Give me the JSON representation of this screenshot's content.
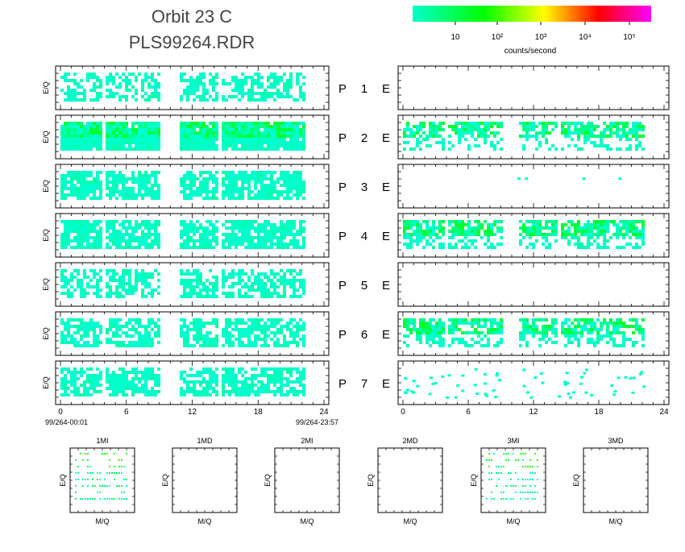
{
  "header": {
    "title_line1": "Orbit 23 C",
    "title_line2": "PLS99264.RDR"
  },
  "colorbar": {
    "colors": [
      "#00ffcc",
      "#00ff00",
      "#ffff00",
      "#ff0000",
      "#ff00ff"
    ],
    "ticks": [
      "10",
      "10²",
      "10³",
      "10⁴",
      "10⁵"
    ],
    "label": "counts/second"
  },
  "chart_data": {
    "type": "heatmap",
    "description_note_none": "",
    "ylabel": "E/Q",
    "x_ticks": [
      "0",
      "6",
      "12",
      "18",
      "24"
    ],
    "xlim": [
      0,
      24
    ],
    "time_start": "99/264-00:01",
    "time_end": "99/264-23:57",
    "data_gaps_hours": [
      [
        8.9,
        10.6
      ]
    ],
    "rows": [
      {
        "p_label": "P",
        "channel": "1",
        "e_label": "E",
        "p_coverage": 0.55,
        "p_green": false,
        "e_coverage": 0.0,
        "e_green": false
      },
      {
        "p_label": "P",
        "channel": "2",
        "e_label": "E",
        "p_coverage": 0.95,
        "p_green": true,
        "e_coverage": 0.7,
        "e_green": true
      },
      {
        "p_label": "P",
        "channel": "3",
        "e_label": "E",
        "p_coverage": 0.8,
        "p_green": false,
        "e_coverage": 0.02,
        "e_green": false
      },
      {
        "p_label": "P",
        "channel": "4",
        "e_label": "E",
        "p_coverage": 0.8,
        "p_green": false,
        "e_coverage": 0.8,
        "e_green": true
      },
      {
        "p_label": "P",
        "channel": "5",
        "e_label": "E",
        "p_coverage": 0.6,
        "p_green": false,
        "e_coverage": 0.0,
        "e_green": false
      },
      {
        "p_label": "P",
        "channel": "6",
        "e_label": "E",
        "p_coverage": 0.7,
        "p_green": false,
        "e_coverage": 0.75,
        "e_green": true
      },
      {
        "p_label": "P",
        "channel": "7",
        "e_label": "E",
        "p_coverage": 0.7,
        "p_green": false,
        "e_coverage": 0.15,
        "e_green": false
      }
    ],
    "mq_panels": [
      {
        "title": "1MI",
        "ylabel": "E/Q",
        "xlabel": "M/Q",
        "has_data": true
      },
      {
        "title": "1MD",
        "ylabel": "E/Q",
        "xlabel": "M/Q",
        "has_data": false
      },
      {
        "title": "2MI",
        "ylabel": "E/Q",
        "xlabel": "M/Q",
        "has_data": false
      },
      {
        "title": "2MD",
        "ylabel": "E/Q",
        "xlabel": "M/Q",
        "has_data": false
      },
      {
        "title": "3MI",
        "ylabel": "E/Q",
        "xlabel": "M/Q",
        "has_data": true
      },
      {
        "title": "3MD",
        "ylabel": "E/Q",
        "xlabel": "M/Q",
        "has_data": false
      }
    ]
  }
}
